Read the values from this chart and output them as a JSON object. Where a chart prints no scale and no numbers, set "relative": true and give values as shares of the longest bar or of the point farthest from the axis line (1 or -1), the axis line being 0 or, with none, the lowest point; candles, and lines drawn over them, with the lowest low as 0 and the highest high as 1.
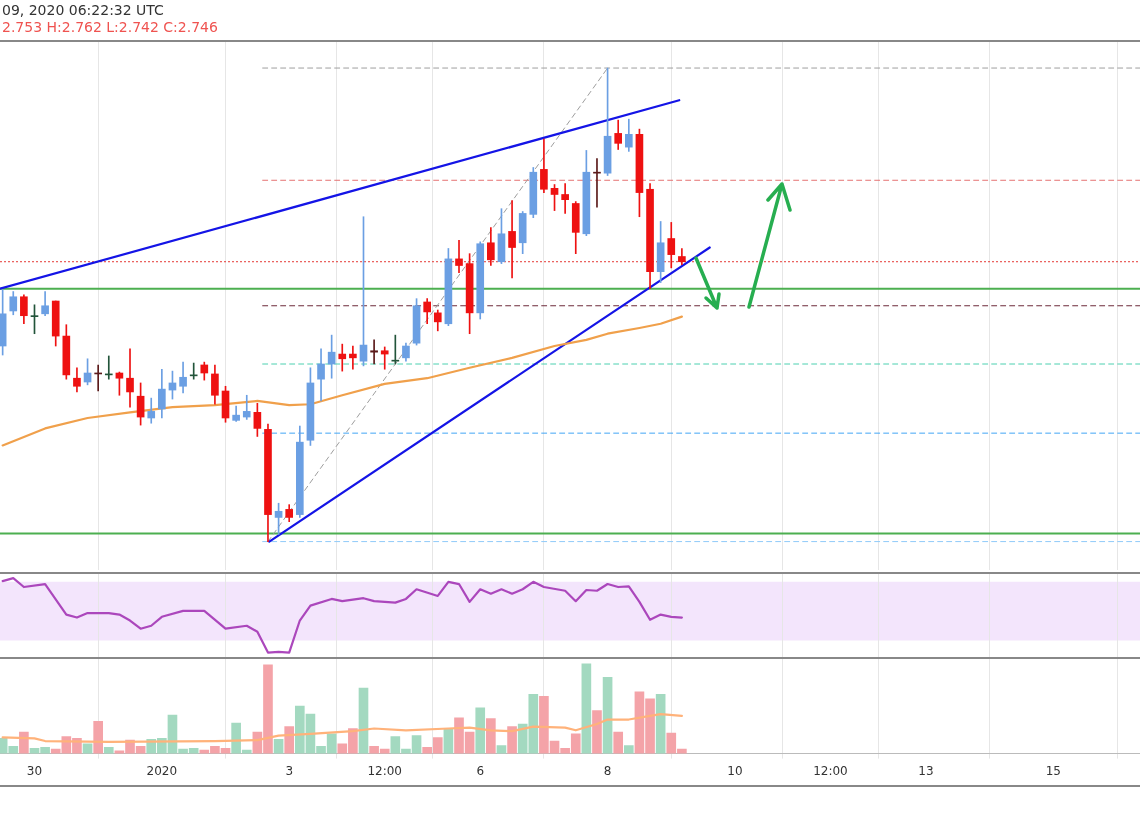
{
  "chart_data": [
    {
      "type": "candlestick",
      "title": "09, 2020 06:22:32 UTC",
      "subtitle": "2.753 H:2.762 L:2.742 C:2.746",
      "relative": true,
      "grid": "x",
      "tick_labels": false,
      "xlim": [
        "2019-12-29T11:00",
        "2020-01-16T08:40"
      ],
      "xticks": [
        {
          "value": "2019-12-30",
          "label": null
        },
        {
          "value": "2020-01-01",
          "label": null
        },
        {
          "value": "2020-01-03",
          "label": null
        },
        {
          "value": "2020-01-04T12:00",
          "label": null
        },
        {
          "value": "2020-01-06",
          "label": null
        },
        {
          "value": "2020-01-08",
          "label": null
        },
        {
          "value": "2020-01-10",
          "label": null
        },
        {
          "value": "2020-01-11T12:00",
          "label": null
        },
        {
          "value": "2020-01-13",
          "label": null
        },
        {
          "value": "2020-01-15",
          "label": null
        }
      ],
      "x": [
        "2019-12-29T12:00",
        "2019-12-29T16:00",
        "2019-12-29T20:00",
        "2019-12-30T00:00",
        "2019-12-30T04:00",
        "2019-12-30T08:00",
        "2019-12-30T12:00",
        "2019-12-30T16:00",
        "2019-12-30T20:00",
        "2019-12-31T00:00",
        "2019-12-31T04:00",
        "2019-12-31T08:00",
        "2019-12-31T12:00",
        "2019-12-31T16:00",
        "2019-12-31T20:00",
        "2020-01-01T00:00",
        "2020-01-01T04:00",
        "2020-01-01T08:00",
        "2020-01-01T12:00",
        "2020-01-01T16:00",
        "2020-01-01T20:00",
        "2020-01-02T00:00",
        "2020-01-02T04:00",
        "2020-01-02T08:00",
        "2020-01-02T12:00",
        "2020-01-02T16:00",
        "2020-01-02T20:00",
        "2020-01-03T00:00",
        "2020-01-03T04:00",
        "2020-01-03T08:00",
        "2020-01-03T12:00",
        "2020-01-03T16:00",
        "2020-01-03T20:00",
        "2020-01-04T00:00",
        "2020-01-04T04:00",
        "2020-01-04T08:00",
        "2020-01-04T12:00",
        "2020-01-04T16:00",
        "2020-01-04T20:00",
        "2020-01-05T00:00",
        "2020-01-05T04:00",
        "2020-01-05T08:00",
        "2020-01-05T12:00",
        "2020-01-05T16:00",
        "2020-01-05T20:00",
        "2020-01-06T00:00",
        "2020-01-06T04:00",
        "2020-01-06T08:00",
        "2020-01-06T12:00",
        "2020-01-06T16:00",
        "2020-01-06T20:00",
        "2020-01-07T00:00",
        "2020-01-07T04:00",
        "2020-01-07T08:00",
        "2020-01-07T12:00",
        "2020-01-07T16:00",
        "2020-01-07T20:00",
        "2020-01-08T00:00",
        "2020-01-08T04:00",
        "2020-01-08T08:00",
        "2020-01-08T12:00",
        "2020-01-08T16:00",
        "2020-01-08T20:00",
        "2020-01-09T00:00",
        "2020-01-09T04:00"
      ],
      "ohlc": [
        [
          0.413,
          0.532,
          0.394,
          0.481
        ],
        [
          0.487,
          0.528,
          0.479,
          0.517
        ],
        [
          0.517,
          0.521,
          0.46,
          0.477
        ],
        [
          0.475,
          0.5,
          0.439,
          0.477
        ],
        [
          0.481,
          0.528,
          0.477,
          0.498
        ],
        [
          0.508,
          0.508,
          0.413,
          0.434
        ],
        [
          0.434,
          0.458,
          0.343,
          0.352
        ],
        [
          0.345,
          0.367,
          0.316,
          0.328
        ],
        [
          0.337,
          0.386,
          0.331,
          0.356
        ],
        [
          0.356,
          0.373,
          0.318,
          0.354
        ],
        [
          0.352,
          0.392,
          0.343,
          0.354
        ],
        [
          0.356,
          0.358,
          0.309,
          0.345
        ],
        [
          0.345,
          0.407,
          0.284,
          0.316
        ],
        [
          0.307,
          0.335,
          0.246,
          0.263
        ],
        [
          0.261,
          0.303,
          0.25,
          0.275
        ],
        [
          0.28,
          0.364,
          0.261,
          0.322
        ],
        [
          0.32,
          0.36,
          0.301,
          0.335
        ],
        [
          0.328,
          0.379,
          0.314,
          0.347
        ],
        [
          0.35,
          0.377,
          0.343,
          0.352
        ],
        [
          0.373,
          0.379,
          0.341,
          0.356
        ],
        [
          0.354,
          0.373,
          0.29,
          0.309
        ],
        [
          0.318,
          0.328,
          0.252,
          0.261
        ],
        [
          0.256,
          0.286,
          0.254,
          0.267
        ],
        [
          0.263,
          0.309,
          0.258,
          0.275
        ],
        [
          0.273,
          0.292,
          0.222,
          0.239
        ],
        [
          0.237,
          0.248,
          0,
          0.057
        ],
        [
          0.051,
          0.081,
          0.015,
          0.064
        ],
        [
          0.068,
          0.078,
          0.042,
          0.051
        ],
        [
          0.057,
          0.244,
          0.051,
          0.21
        ],
        [
          0.214,
          0.367,
          0.203,
          0.335
        ],
        [
          0.343,
          0.407,
          0.297,
          0.375
        ],
        [
          0.375,
          0.436,
          0.345,
          0.4
        ],
        [
          0.396,
          0.417,
          0.36,
          0.386
        ],
        [
          0.396,
          0.413,
          0.364,
          0.388
        ],
        [
          0.381,
          0.686,
          0.371,
          0.415
        ],
        [
          0.403,
          0.426,
          0.375,
          0.4
        ],
        [
          0.403,
          0.411,
          0.364,
          0.396
        ],
        [
          0.381,
          0.436,
          0.375,
          0.383
        ],
        [
          0.388,
          0.419,
          0.381,
          0.413
        ],
        [
          0.419,
          0.513,
          0.415,
          0.498
        ],
        [
          0.506,
          0.513,
          0.46,
          0.485
        ],
        [
          0.483,
          0.489,
          0.445,
          0.464
        ],
        [
          0.46,
          0.619,
          0.456,
          0.597
        ],
        [
          0.597,
          0.636,
          0.568,
          0.583
        ],
        [
          0.587,
          0.608,
          0.439,
          0.483
        ],
        [
          0.483,
          0.633,
          0.47,
          0.629
        ],
        [
          0.631,
          0.663,
          0.583,
          0.595
        ],
        [
          0.591,
          0.703,
          0.587,
          0.65
        ],
        [
          0.655,
          0.72,
          0.557,
          0.621
        ],
        [
          0.631,
          0.697,
          0.608,
          0.693
        ],
        [
          0.691,
          0.79,
          0.684,
          0.78
        ],
        [
          0.786,
          0.85,
          0.737,
          0.744
        ],
        [
          0.746,
          0.754,
          0.699,
          0.733
        ],
        [
          0.733,
          0.756,
          0.693,
          0.722
        ],
        [
          0.714,
          0.718,
          0.608,
          0.653
        ],
        [
          0.65,
          0.826,
          0.646,
          0.78
        ],
        [
          0.78,
          0.809,
          0.706,
          0.778
        ],
        [
          0.778,
          1,
          0.773,
          0.856
        ],
        [
          0.862,
          0.89,
          0.828,
          0.841
        ],
        [
          0.833,
          0.892,
          0.824,
          0.86
        ],
        [
          0.86,
          0.871,
          0.686,
          0.737
        ],
        [
          0.744,
          0.756,
          0.534,
          0.57
        ],
        [
          0.57,
          0.676,
          0.547,
          0.631
        ],
        [
          0.64,
          0.674,
          0.578,
          0.606
        ],
        [
          0.602,
          0.619,
          0.585,
          0.591
        ]
      ],
      "colors": [
        "#6b9fe3",
        "#6b9fe3",
        "#ee1111",
        "#22543a",
        "#6b9fe3",
        "#ee1111",
        "#ee1111",
        "#ee1111",
        "#6b9fe3",
        "#5b1a1a",
        "#22543a",
        "#ee1111",
        "#ee1111",
        "#ee1111",
        "#6b9fe3",
        "#6b9fe3",
        "#6b9fe3",
        "#6b9fe3",
        "#22543a",
        "#ee1111",
        "#ee1111",
        "#ee1111",
        "#6b9fe3",
        "#6b9fe3",
        "#ee1111",
        "#ee1111",
        "#6b9fe3",
        "#ee1111",
        "#6b9fe3",
        "#6b9fe3",
        "#6b9fe3",
        "#6b9fe3",
        "#ee1111",
        "#ee1111",
        "#6b9fe3",
        "#5b1a1a",
        "#ee1111",
        "#22543a",
        "#6b9fe3",
        "#6b9fe3",
        "#ee1111",
        "#ee1111",
        "#6b9fe3",
        "#ee1111",
        "#ee1111",
        "#6b9fe3",
        "#ee1111",
        "#6b9fe3",
        "#ee1111",
        "#6b9fe3",
        "#6b9fe3",
        "#ee1111",
        "#ee1111",
        "#ee1111",
        "#ee1111",
        "#6b9fe3",
        "#5b1a1a",
        "#6b9fe3",
        "#ee1111",
        "#6b9fe3",
        "#ee1111",
        "#ee1111",
        "#6b9fe3",
        "#ee1111",
        "#ee1111"
      ],
      "series": [
        {
          "type": "line",
          "color": "#f0a04b",
          "x": [
            "2019-12-29T12:00",
            "2019-12-30T04:00",
            "2019-12-30T20:00",
            "2019-12-31T12:00",
            "2020-01-01T04:00",
            "2020-01-01T20:00",
            "2020-01-02T12:00",
            "2020-01-03T00:00",
            "2020-01-03T08:00",
            "2020-01-03T20:00",
            "2020-01-04T12:00",
            "2020-01-05T04:00",
            "2020-01-05T20:00",
            "2020-01-06T12:00",
            "2020-01-07T04:00",
            "2020-01-07T16:00",
            "2020-01-08T00:00",
            "2020-01-08T12:00",
            "2020-01-08T20:00",
            "2020-01-09T04:00"
          ],
          "values": [
            0.203,
            0.239,
            0.261,
            0.273,
            0.284,
            0.288,
            0.297,
            0.288,
            0.29,
            0.309,
            0.333,
            0.345,
            0.367,
            0.388,
            0.413,
            0.426,
            0.439,
            0.451,
            0.46,
            0.475
          ]
        },
        {
          "type": "line",
          "color": "#1414e6",
          "x": [
            "2019-12-29T11:00",
            "2020-01-09T03:00"
          ],
          "values": [
            0.534,
            0.932
          ]
        },
        {
          "type": "line",
          "color": "#1414e6",
          "x": [
            "2020-01-02T16:30",
            "2020-01-09T14:30"
          ],
          "values": [
            0,
            0.621
          ]
        },
        {
          "type": "line",
          "color": "#9e9e9e",
          "line_style": "dashed",
          "x": [
            "2020-01-02T16:00",
            "2020-01-08T00:00"
          ],
          "values": [
            0,
            1
          ]
        },
        {
          "type": "line",
          "color": "#9e9e9e",
          "line_style": "dashed",
          "x": [
            "2020-01-02T14:00",
            "2020-01-16T08:40"
          ],
          "values": [
            1,
            1
          ]
        },
        {
          "type": "line",
          "color": "#e57373",
          "line_style": "dashed",
          "x": [
            "2020-01-02T14:00",
            "2020-01-16T08:40"
          ],
          "values": [
            0.763,
            0.763
          ]
        },
        {
          "type": "line",
          "color": "#6d2a3a",
          "line_style": "dashed",
          "x": [
            "2020-01-02T14:00",
            "2020-01-16T08:40"
          ],
          "values": [
            0.498,
            0.498
          ]
        },
        {
          "type": "line",
          "color": "#4dd0b0",
          "line_style": "dashed",
          "x": [
            "2020-01-02T14:00",
            "2020-01-16T08:40"
          ],
          "values": [
            0.375,
            0.375
          ]
        },
        {
          "type": "line",
          "color": "#42a5f5",
          "line_style": "dashed",
          "x": [
            "2020-01-02T14:00",
            "2020-01-16T08:40"
          ],
          "values": [
            0.229,
            0.229
          ]
        },
        {
          "type": "line",
          "color": "#90caf9",
          "line_style": "dashed",
          "x": [
            "2020-01-02T14:00",
            "2020-01-16T08:40"
          ],
          "values": [
            0,
            0
          ]
        }
      ],
      "ref_lines": [
        {
          "axis": "y",
          "value": 0.534,
          "color": "#4caf50"
        },
        {
          "axis": "y",
          "value": 0.017,
          "color": "#4caf50"
        },
        {
          "axis": "y",
          "value": 0.591,
          "color": "#e53935",
          "line_style": "dotted"
        }
      ]
    },
    {
      "type": "line",
      "relative": true,
      "grid": "x",
      "tick_labels": false,
      "xlim": [
        "2019-12-29T11:00",
        "2020-01-16T08:40"
      ],
      "xticks": [
        {
          "value": "2019-12-30",
          "label": null
        },
        {
          "value": "2020-01-01",
          "label": null
        },
        {
          "value": "2020-01-03",
          "label": null
        },
        {
          "value": "2020-01-04T12:00",
          "label": null
        },
        {
          "value": "2020-01-06",
          "label": null
        },
        {
          "value": "2020-01-08",
          "label": null
        },
        {
          "value": "2020-01-10",
          "label": null
        },
        {
          "value": "2020-01-11T12:00",
          "label": null
        },
        {
          "value": "2020-01-13",
          "label": null
        },
        {
          "value": "2020-01-15",
          "label": null
        }
      ],
      "bands": [
        {
          "axis": "y",
          "from": 0.16,
          "to": 0.95,
          "color": "#f3e5fc"
        }
      ],
      "series": [
        {
          "color": "#ab47bc",
          "x": [
            "2019-12-29T12:00",
            "2019-12-29T16:00",
            "2019-12-29T20:00",
            "2019-12-30T04:00",
            "2019-12-30T12:00",
            "2019-12-30T16:00",
            "2019-12-30T20:00",
            "2019-12-31T04:00",
            "2019-12-31T08:00",
            "2019-12-31T12:00",
            "2019-12-31T16:00",
            "2019-12-31T20:00",
            "2020-01-01T00:00",
            "2020-01-01T08:00",
            "2020-01-01T16:00",
            "2020-01-02T00:00",
            "2020-01-02T08:00",
            "2020-01-02T12:00",
            "2020-01-02T16:00",
            "2020-01-02T20:00",
            "2020-01-03T00:00",
            "2020-01-03T04:00",
            "2020-01-03T08:00",
            "2020-01-03T16:00",
            "2020-01-03T20:00",
            "2020-01-04T04:00",
            "2020-01-04T08:00",
            "2020-01-04T12:00",
            "2020-01-04T16:00",
            "2020-01-04T20:00",
            "2020-01-05T00:00",
            "2020-01-05T08:00",
            "2020-01-05T12:00",
            "2020-01-05T16:00",
            "2020-01-05T20:00",
            "2020-01-06T00:00",
            "2020-01-06T04:00",
            "2020-01-06T08:00",
            "2020-01-06T12:00",
            "2020-01-06T16:00",
            "2020-01-06T20:00",
            "2020-01-07T00:00",
            "2020-01-07T08:00",
            "2020-01-07T12:00",
            "2020-01-07T16:00",
            "2020-01-07T20:00",
            "2020-01-08T00:00",
            "2020-01-08T04:00",
            "2020-01-08T08:00",
            "2020-01-08T12:00",
            "2020-01-08T16:00",
            "2020-01-08T20:00",
            "2020-01-09T00:00",
            "2020-01-09T04:00"
          ],
          "values": [
            0.96,
            1,
            0.88,
            0.92,
            0.51,
            0.47,
            0.53,
            0.53,
            0.51,
            0.43,
            0.32,
            0.36,
            0.48,
            0.56,
            0.56,
            0.32,
            0.36,
            0.28,
            0,
            0.01,
            0,
            0.43,
            0.63,
            0.72,
            0.69,
            0.73,
            0.69,
            0.68,
            0.67,
            0.72,
            0.85,
            0.76,
            0.95,
            0.92,
            0.68,
            0.85,
            0.79,
            0.85,
            0.79,
            0.85,
            0.95,
            0.88,
            0.83,
            0.69,
            0.84,
            0.83,
            0.92,
            0.88,
            0.89,
            0.68,
            0.44,
            0.51,
            0.48,
            0.47
          ]
        }
      ]
    },
    {
      "type": "bar",
      "relative": true,
      "grid": "x",
      "tick_labels": "x",
      "xlim": [
        "2019-12-29T11:00",
        "2020-01-16T08:40"
      ],
      "xticks": [
        {
          "value": "2019-12-30",
          "label": "30"
        },
        {
          "value": "2020-01-01",
          "label": "2020"
        },
        {
          "value": "2020-01-03",
          "label": "3"
        },
        {
          "value": "2020-01-04T12:00",
          "label": "12:00"
        },
        {
          "value": "2020-01-06",
          "label": "6"
        },
        {
          "value": "2020-01-08",
          "label": "8"
        },
        {
          "value": "2020-01-10",
          "label": "10"
        },
        {
          "value": "2020-01-11T12:00",
          "label": "12:00"
        },
        {
          "value": "2020-01-13",
          "label": "13"
        },
        {
          "value": "2020-01-15",
          "label": "15"
        }
      ],
      "x": [
        "2019-12-29T12:00",
        "2019-12-29T16:00",
        "2019-12-29T20:00",
        "2019-12-30T00:00",
        "2019-12-30T04:00",
        "2019-12-30T08:00",
        "2019-12-30T12:00",
        "2019-12-30T16:00",
        "2019-12-30T20:00",
        "2019-12-31T00:00",
        "2019-12-31T04:00",
        "2019-12-31T08:00",
        "2019-12-31T12:00",
        "2019-12-31T16:00",
        "2019-12-31T20:00",
        "2020-01-01T00:00",
        "2020-01-01T04:00",
        "2020-01-01T08:00",
        "2020-01-01T12:00",
        "2020-01-01T16:00",
        "2020-01-01T20:00",
        "2020-01-02T00:00",
        "2020-01-02T04:00",
        "2020-01-02T08:00",
        "2020-01-02T12:00",
        "2020-01-02T16:00",
        "2020-01-02T20:00",
        "2020-01-03T00:00",
        "2020-01-03T04:00",
        "2020-01-03T08:00",
        "2020-01-03T12:00",
        "2020-01-03T16:00",
        "2020-01-03T20:00",
        "2020-01-04T00:00",
        "2020-01-04T04:00",
        "2020-01-04T08:00",
        "2020-01-04T12:00",
        "2020-01-04T16:00",
        "2020-01-04T20:00",
        "2020-01-05T00:00",
        "2020-01-05T04:00",
        "2020-01-05T08:00",
        "2020-01-05T12:00",
        "2020-01-05T16:00",
        "2020-01-05T20:00",
        "2020-01-06T00:00",
        "2020-01-06T04:00",
        "2020-01-06T08:00",
        "2020-01-06T12:00",
        "2020-01-06T16:00",
        "2020-01-06T20:00",
        "2020-01-07T00:00",
        "2020-01-07T04:00",
        "2020-01-07T08:00",
        "2020-01-07T12:00",
        "2020-01-07T16:00",
        "2020-01-07T20:00",
        "2020-01-08T00:00",
        "2020-01-08T04:00",
        "2020-01-08T08:00",
        "2020-01-08T12:00",
        "2020-01-08T16:00",
        "2020-01-08T20:00",
        "2020-01-09T00:00",
        "2020-01-09T04:00"
      ],
      "series": [
        {
          "values": [
            0.17,
            0.08,
            0.24,
            0.06,
            0.07,
            0.05,
            0.19,
            0.17,
            0.11,
            0.36,
            0.07,
            0.03,
            0.15,
            0.08,
            0.16,
            0.17,
            0.43,
            0.05,
            0.06,
            0.04,
            0.08,
            0.06,
            0.34,
            0.04,
            0.24,
            0.99,
            0.16,
            0.3,
            0.53,
            0.44,
            0.08,
            0.22,
            0.11,
            0.28,
            0.73,
            0.08,
            0.05,
            0.19,
            0.05,
            0.2,
            0.07,
            0.18,
            0.27,
            0.4,
            0.24,
            0.51,
            0.39,
            0.09,
            0.3,
            0.33,
            0.66,
            0.64,
            0.14,
            0.06,
            0.22,
            1,
            0.48,
            0.85,
            0.24,
            0.09,
            0.69,
            0.61,
            0.66,
            0.23,
            0.05
          ],
          "colors": [
            "#a3d9c0",
            "#a3d9c0",
            "#f4a3a8",
            "#a3d9c0",
            "#a3d9c0",
            "#f4a3a8",
            "#f4a3a8",
            "#f4a3a8",
            "#a3d9c0",
            "#f4a3a8",
            "#a3d9c0",
            "#f4a3a8",
            "#f4a3a8",
            "#f4a3a8",
            "#a3d9c0",
            "#a3d9c0",
            "#a3d9c0",
            "#a3d9c0",
            "#a3d9c0",
            "#f4a3a8",
            "#f4a3a8",
            "#f4a3a8",
            "#a3d9c0",
            "#a3d9c0",
            "#f4a3a8",
            "#f4a3a8",
            "#a3d9c0",
            "#f4a3a8",
            "#a3d9c0",
            "#a3d9c0",
            "#a3d9c0",
            "#a3d9c0",
            "#f4a3a8",
            "#f4a3a8",
            "#a3d9c0",
            "#f4a3a8",
            "#f4a3a8",
            "#a3d9c0",
            "#a3d9c0",
            "#a3d9c0",
            "#f4a3a8",
            "#f4a3a8",
            "#a3d9c0",
            "#f4a3a8",
            "#f4a3a8",
            "#a3d9c0",
            "#f4a3a8",
            "#a3d9c0",
            "#f4a3a8",
            "#a3d9c0",
            "#a3d9c0",
            "#f4a3a8",
            "#f4a3a8",
            "#f4a3a8",
            "#f4a3a8",
            "#a3d9c0",
            "#f4a3a8",
            "#a3d9c0",
            "#f4a3a8",
            "#a3d9c0",
            "#f4a3a8",
            "#f4a3a8",
            "#a3d9c0",
            "#f4a3a8",
            "#f4a3a8"
          ]
        },
        {
          "type": "line",
          "color": "#ffb27a",
          "x": [
            "2019-12-29T12:00",
            "2019-12-30T00:00",
            "2019-12-30T04:00",
            "2019-12-31T04:00",
            "2020-01-01T20:00",
            "2020-01-02T12:00",
            "2020-01-02T20:00",
            "2020-01-03T08:00",
            "2020-01-04T00:00",
            "2020-01-04T08:00",
            "2020-01-04T20:00",
            "2020-01-05T12:00",
            "2020-01-05T20:00",
            "2020-01-06T04:00",
            "2020-01-06T12:00",
            "2020-01-06T20:00",
            "2020-01-07T08:00",
            "2020-01-07T12:00",
            "2020-01-07T20:00",
            "2020-01-08T00:00",
            "2020-01-08T08:00",
            "2020-01-08T16:00",
            "2020-01-08T20:00",
            "2020-01-09T04:00"
          ],
          "values": [
            0.18,
            0.17,
            0.14,
            0.13,
            0.14,
            0.15,
            0.2,
            0.22,
            0.25,
            0.28,
            0.26,
            0.28,
            0.29,
            0.26,
            0.25,
            0.3,
            0.29,
            0.26,
            0.33,
            0.38,
            0.38,
            0.42,
            0.44,
            0.42
          ]
        }
      ]
    }
  ]
}
